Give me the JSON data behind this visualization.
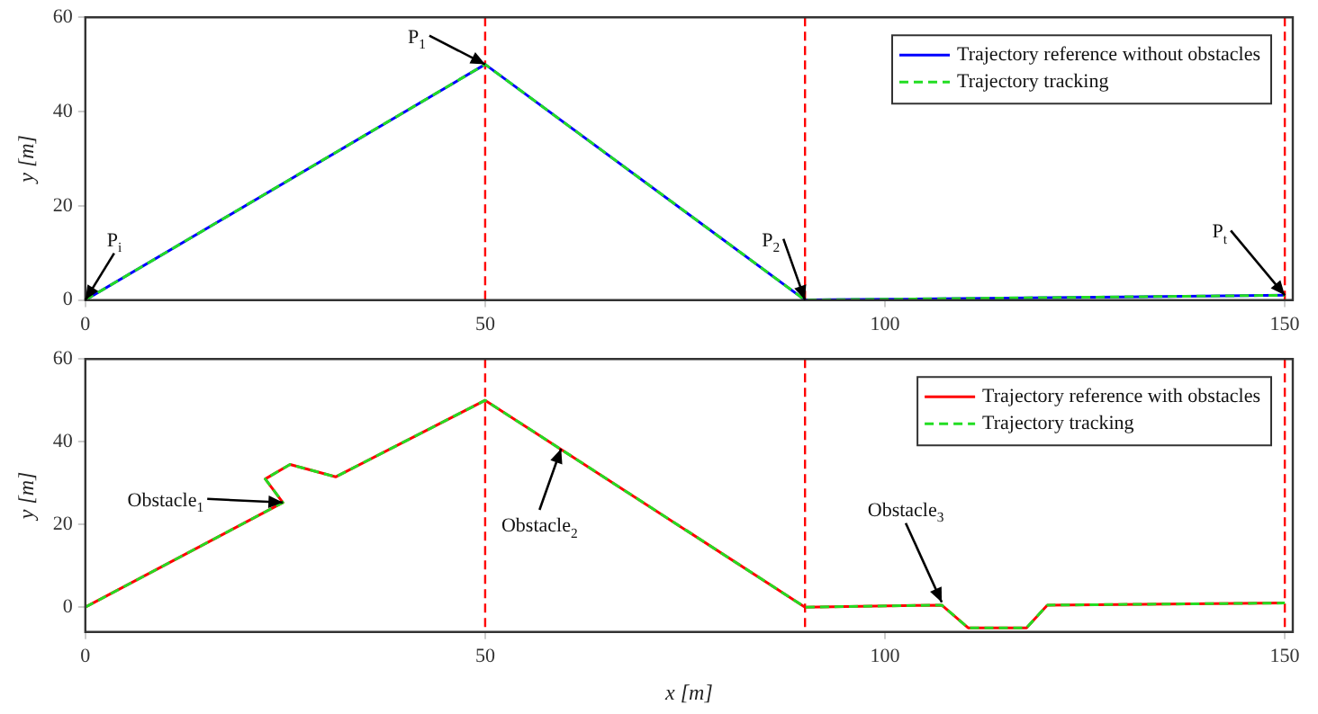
{
  "chart_data": [
    {
      "type": "line",
      "ylabel": "y [m]",
      "xlim": [
        0,
        151
      ],
      "ylim": [
        0,
        60
      ],
      "xticks": [
        0,
        50,
        100,
        150
      ],
      "yticks": [
        0,
        20,
        40,
        60
      ],
      "grid": false,
      "legend": "top right",
      "marker": "none",
      "series": [
        {
          "name": "Trajectory reference without obstacles",
          "color": "#0000ff",
          "line_style": "solid",
          "x": [
            0,
            50,
            90,
            150
          ],
          "values": [
            0,
            50,
            0,
            1
          ]
        },
        {
          "name": "Trajectory tracking",
          "color": "#22dd22",
          "line_style": "dashed",
          "x": [
            0,
            50,
            90,
            150
          ],
          "values": [
            0,
            50,
            0,
            1
          ]
        }
      ],
      "ref_lines": [
        {
          "axis": "x",
          "value": 50,
          "color": "#ff0000",
          "line_style": "dashed"
        },
        {
          "axis": "x",
          "value": 90,
          "color": "#ff0000",
          "line_style": "dashed"
        },
        {
          "axis": "x",
          "value": 150,
          "color": "#ff0000",
          "line_style": "dashed"
        }
      ],
      "annotations": [
        {
          "text": "P$_{i}$",
          "x": 0,
          "y": 0
        },
        {
          "text": "P$_{1}$",
          "x": 50,
          "y": 50
        },
        {
          "text": "P$_{2}$",
          "x": 90,
          "y": 0
        },
        {
          "text": "P$_{t}$",
          "x": 150,
          "y": 1
        }
      ]
    },
    {
      "type": "line",
      "xlabel": "x [m]",
      "ylabel": "y [m]",
      "xlim": [
        0,
        151
      ],
      "ylim": [
        -6,
        60
      ],
      "xticks": [
        0,
        50,
        100,
        150
      ],
      "yticks": [
        0,
        20,
        40,
        60
      ],
      "grid": false,
      "legend": "top right",
      "marker": "none",
      "series": [
        {
          "name": "Trajectory reference with obstacles",
          "color": "#ff0000",
          "line_style": "solid",
          "x": [
            0,
            24.7,
            22.5,
            25.6,
            31.3,
            50,
            90,
            107.1,
            110.4,
            117.7,
            120.3,
            150
          ],
          "values": [
            0,
            25.3,
            31,
            34.5,
            31.5,
            50,
            0,
            0.5,
            -5,
            -5,
            0.5,
            1
          ]
        },
        {
          "name": "Trajectory tracking",
          "color": "#22dd22",
          "line_style": "dashed",
          "x": [
            0,
            24.7,
            22.5,
            25.6,
            31.3,
            50,
            90,
            107.1,
            110.4,
            117.7,
            120.3,
            150
          ],
          "values": [
            0,
            25.3,
            31,
            34.5,
            31.5,
            50,
            0,
            0.5,
            -5,
            -5,
            0.5,
            1
          ]
        }
      ],
      "ref_lines": [
        {
          "axis": "x",
          "value": 50,
          "color": "#ff0000",
          "line_style": "dashed"
        },
        {
          "axis": "x",
          "value": 90,
          "color": "#ff0000",
          "line_style": "dashed"
        },
        {
          "axis": "x",
          "value": 150,
          "color": "#ff0000",
          "line_style": "dashed"
        }
      ],
      "annotations": [
        {
          "text": "Obstacle$_{1}$",
          "x": 24.7,
          "y": 25.3
        },
        {
          "text": "Obstacle$_{2}$",
          "x": 59.5,
          "y": 38.3
        },
        {
          "text": "Obstacle$_{3}$",
          "x": 107.1,
          "y": 1.2
        }
      ]
    }
  ]
}
